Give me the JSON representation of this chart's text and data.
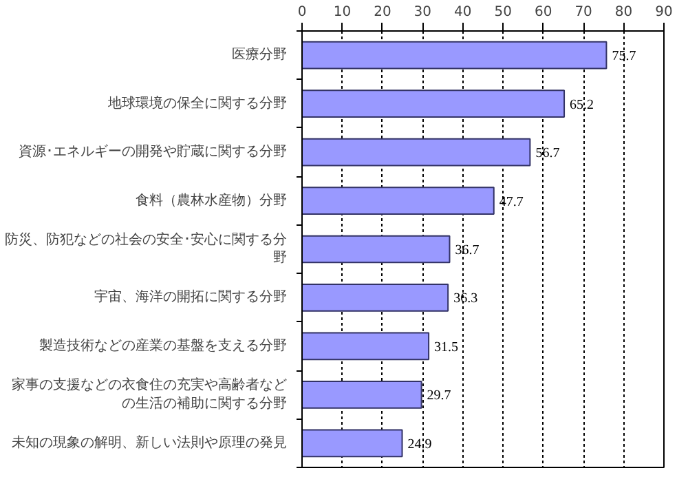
{
  "chart_data": {
    "type": "bar",
    "orientation": "horizontal",
    "categories": [
      "医療分野",
      "地球環境の保全に関する分野",
      "資源･エネルギーの開発や貯蔵に関する分野",
      "食料（農林水産物）分野",
      "防災、防犯などの社会の安全･安心に関する分野",
      "宇宙、海洋の開拓に関する分野",
      "製造技術などの産業の基盤を支える分野",
      "家事の支援などの衣食住の充実や高齢者などの生活の補助に関する分野",
      "未知の現象の解明、新しい法則や原理の発見"
    ],
    "values": [
      75.7,
      65.2,
      56.7,
      47.7,
      36.7,
      36.3,
      31.5,
      29.7,
      24.9
    ],
    "color": "#9999ff",
    "xlim": [
      0,
      90
    ],
    "xticks": [
      0,
      10,
      20,
      30,
      40,
      50,
      60,
      70,
      80,
      90
    ],
    "grid": "x",
    "data_labels": true
  }
}
